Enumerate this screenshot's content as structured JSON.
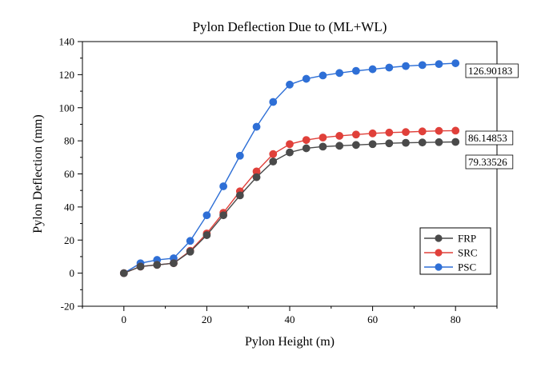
{
  "chart_data": {
    "type": "line",
    "title": "Pylon Deflection Due to (ML+WL)",
    "xlabel": "Pylon Height (m)",
    "ylabel": "Pylon Deflection (mm)",
    "xlim": [
      -10,
      90
    ],
    "ylim": [
      -20,
      140
    ],
    "xticks": [
      0,
      20,
      40,
      60,
      80
    ],
    "yticks": [
      -20,
      0,
      20,
      40,
      60,
      80,
      100,
      120,
      140
    ],
    "x": [
      0,
      4,
      8,
      12,
      16,
      20,
      24,
      28,
      32,
      36,
      40,
      44,
      48,
      52,
      56,
      60,
      64,
      68,
      72,
      76,
      80
    ],
    "series": [
      {
        "name": "FRP",
        "color": "#4a4a4a",
        "values": [
          0,
          4,
          5,
          6,
          13,
          23,
          35,
          47,
          58,
          67.5,
          73,
          75.5,
          76.5,
          77,
          77.5,
          78,
          78.5,
          78.8,
          79,
          79.2,
          79.33526
        ],
        "end_label": "79.33526"
      },
      {
        "name": "SRC",
        "color": "#e0403a",
        "values": [
          0,
          4,
          5,
          6,
          13.5,
          24,
          36.5,
          49.5,
          61.5,
          72,
          78,
          80.5,
          82,
          83,
          83.8,
          84.5,
          85,
          85.3,
          85.7,
          86,
          86.14853
        ],
        "end_label": "86.14853"
      },
      {
        "name": "PSC",
        "color": "#2e6fd6",
        "values": [
          0,
          6,
          8,
          9,
          19.5,
          35,
          52.5,
          71,
          88.5,
          103.5,
          114,
          117.5,
          119.5,
          121,
          122.3,
          123.3,
          124.3,
          125.2,
          125.8,
          126.4,
          126.90183
        ],
        "end_label": "126.90183"
      }
    ],
    "legend_position": "bottom-right"
  }
}
